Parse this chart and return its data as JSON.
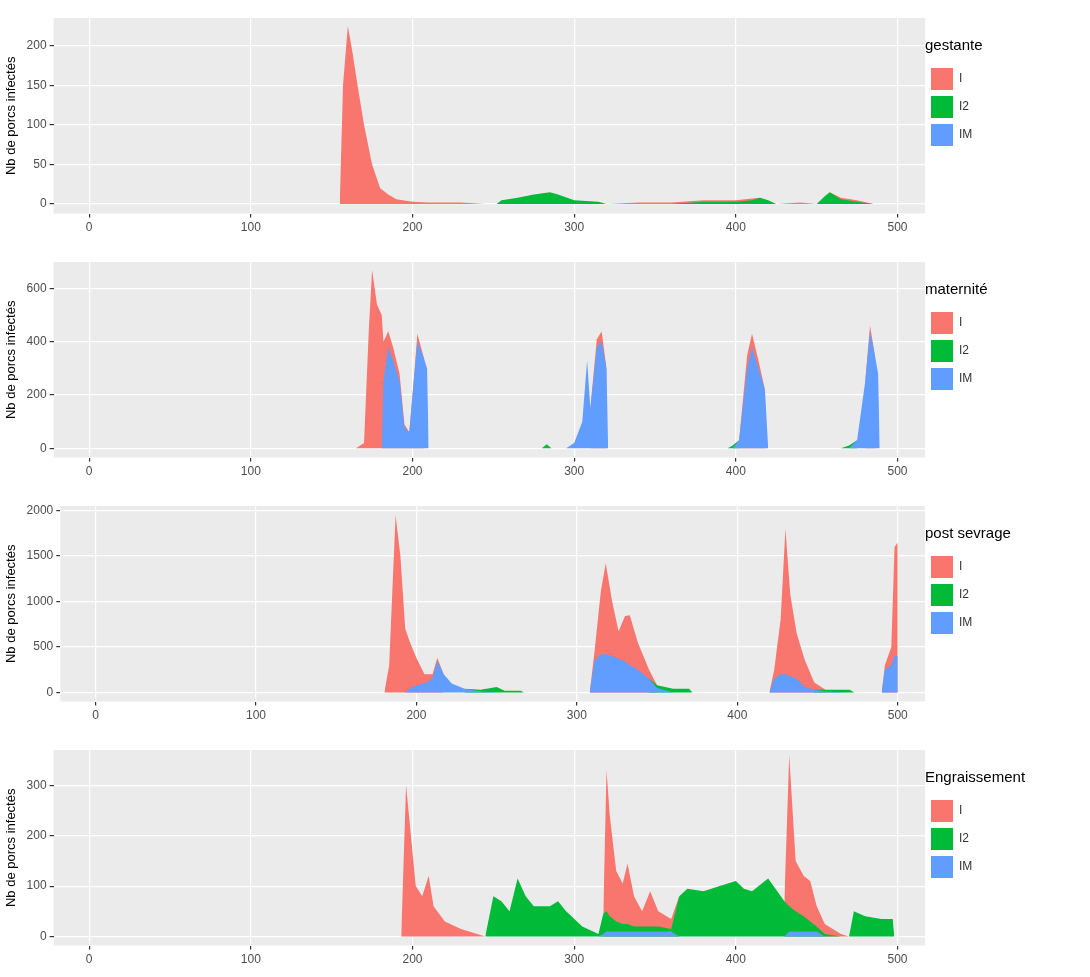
{
  "chart_data": [
    {
      "type": "area",
      "stacked": true,
      "ylabel": "Nb de porcs infectés",
      "legend_title": "gestante",
      "legend": "right",
      "grid": true,
      "x": [
        155,
        157,
        160,
        163,
        166,
        170,
        175,
        180,
        185,
        190,
        200,
        210,
        230,
        245,
        252,
        255,
        265,
        275,
        285,
        290,
        300,
        315,
        320,
        340,
        360,
        380,
        400,
        410,
        415,
        420,
        425,
        440,
        450,
        455,
        458,
        465,
        475,
        485
      ],
      "xlim": [
        -22,
        517
      ],
      "xticks": [
        0,
        100,
        200,
        300,
        400,
        500
      ],
      "ylim": [
        -12,
        235
      ],
      "yticks": [
        0,
        50,
        100,
        150,
        200
      ],
      "series": [
        {
          "name": "IM",
          "color": "#619cff",
          "values": [
            null,
            null,
            null,
            null,
            null,
            null,
            null,
            null,
            null,
            null,
            null,
            null,
            null,
            null,
            null,
            null,
            null,
            null,
            null,
            null,
            null,
            null,
            null,
            null,
            null,
            null,
            null,
            null,
            null,
            null,
            null,
            null,
            null,
            null,
            null,
            null,
            null,
            null
          ]
        },
        {
          "name": "I2",
          "color": "#00ba38",
          "values": [
            null,
            null,
            null,
            null,
            null,
            null,
            null,
            null,
            null,
            null,
            null,
            null,
            null,
            null,
            0,
            5,
            8,
            12,
            15,
            12,
            5,
            3,
            0,
            null,
            0,
            3,
            3,
            5,
            8,
            5,
            0,
            null,
            0,
            10,
            15,
            6,
            3,
            0
          ]
        },
        {
          "name": "I",
          "color": "#f8766d",
          "values": [
            0,
            150,
            225,
            190,
            150,
            100,
            50,
            20,
            12,
            6,
            3,
            2,
            2,
            0,
            null,
            null,
            null,
            null,
            null,
            null,
            null,
            null,
            0,
            2,
            2,
            2,
            2,
            2,
            0,
            null,
            0,
            2,
            0,
            null,
            0,
            2,
            2,
            0
          ]
        }
      ]
    },
    {
      "type": "area",
      "stacked": true,
      "ylabel": "Nb de porcs infectés",
      "legend_title": "maternité",
      "legend": "right",
      "grid": true,
      "x": [
        165,
        170,
        173,
        175,
        178,
        181,
        182,
        185,
        188,
        192,
        195,
        198,
        200,
        203,
        207,
        209,
        210,
        280,
        283,
        286,
        295,
        300,
        305,
        308,
        310,
        314,
        317,
        320,
        321,
        395,
        398,
        402,
        407,
        410,
        414,
        418,
        420,
        465,
        470,
        475,
        480,
        483,
        486,
        488,
        489
      ],
      "xlim": [
        -22,
        517
      ],
      "xticks": [
        0,
        100,
        200,
        300,
        400,
        500
      ],
      "ylim": [
        -35,
        700
      ],
      "yticks": [
        0,
        200,
        400,
        600
      ],
      "series": [
        {
          "name": "IM",
          "color": "#619cff",
          "values": [
            null,
            null,
            null,
            null,
            null,
            0,
            250,
            380,
            330,
            250,
            80,
            60,
            200,
            400,
            340,
            300,
            0,
            null,
            null,
            null,
            0,
            20,
            100,
            330,
            150,
            380,
            400,
            300,
            0,
            null,
            0,
            30,
            300,
            380,
            300,
            220,
            0,
            null,
            0,
            30,
            250,
            440,
            350,
            280,
            0
          ]
        },
        {
          "name": "I2",
          "color": "#00ba38",
          "values": [
            null,
            null,
            null,
            null,
            null,
            null,
            null,
            null,
            null,
            null,
            null,
            null,
            null,
            null,
            null,
            null,
            null,
            0,
            15,
            0,
            null,
            null,
            null,
            null,
            null,
            null,
            null,
            null,
            null,
            0,
            10,
            0,
            null,
            null,
            null,
            null,
            null,
            0,
            10,
            0,
            null,
            null,
            null,
            null,
            null
          ]
        },
        {
          "name": "I",
          "color": "#f8766d",
          "values": [
            0,
            20,
            450,
            670,
            540,
            500,
            150,
            60,
            50,
            30,
            10,
            0,
            0,
            30,
            0,
            null,
            null,
            null,
            null,
            null,
            null,
            null,
            null,
            null,
            0,
            30,
            40,
            0,
            null,
            null,
            null,
            0,
            50,
            50,
            30,
            0,
            null,
            null,
            null,
            null,
            0,
            20,
            0,
            null,
            null
          ]
        }
      ]
    },
    {
      "type": "area",
      "stacked": true,
      "ylabel": "Nb de porcs infectés",
      "legend_title": "post sevrage",
      "legend": "right",
      "grid": true,
      "x": [
        180,
        183,
        187,
        190,
        193,
        196,
        200,
        205,
        210,
        213,
        217,
        222,
        230,
        240,
        250,
        255,
        265,
        267,
        308,
        311,
        315,
        318,
        322,
        326,
        330,
        333,
        338,
        345,
        350,
        360,
        370,
        372,
        420,
        423,
        427,
        430,
        433,
        437,
        442,
        448,
        455,
        470,
        473,
        490,
        492,
        496,
        498,
        500
      ],
      "xlim": [
        -22,
        517
      ],
      "xticks": [
        0,
        100,
        200,
        300,
        400,
        500
      ],
      "ylim": [
        -100,
        2050
      ],
      "yticks": [
        0,
        500,
        1000,
        1500,
        2000
      ],
      "series": [
        {
          "name": "IM",
          "color": "#619cff",
          "values": [
            null,
            null,
            null,
            null,
            0,
            50,
            80,
            100,
            150,
            350,
            200,
            100,
            40,
            10,
            0,
            null,
            null,
            null,
            0,
            350,
            420,
            420,
            400,
            370,
            340,
            300,
            250,
            150,
            50,
            0,
            null,
            null,
            0,
            150,
            200,
            200,
            180,
            150,
            60,
            30,
            10,
            0,
            null,
            0,
            250,
            300,
            400,
            400
          ]
        },
        {
          "name": "I2",
          "color": "#00ba38",
          "values": [
            null,
            null,
            null,
            null,
            null,
            null,
            null,
            null,
            null,
            null,
            null,
            null,
            0,
            20,
            60,
            20,
            20,
            0,
            null,
            null,
            null,
            null,
            null,
            null,
            null,
            null,
            null,
            0,
            30,
            40,
            40,
            0,
            null,
            null,
            null,
            null,
            null,
            null,
            null,
            0,
            20,
            30,
            0,
            null,
            null,
            null,
            null,
            null
          ]
        },
        {
          "name": "I",
          "color": "#f8766d",
          "values": [
            0,
            300,
            1950,
            1500,
            700,
            500,
            300,
            100,
            50,
            30,
            0,
            null,
            null,
            null,
            null,
            null,
            null,
            null,
            0,
            100,
            700,
            1000,
            600,
            300,
            500,
            550,
            300,
            100,
            0,
            null,
            null,
            null,
            0,
            100,
            600,
            1600,
            900,
            500,
            300,
            80,
            0,
            null,
            null,
            0,
            50,
            200,
            1200,
            1250
          ]
        }
      ]
    },
    {
      "type": "area",
      "stacked": true,
      "ylabel": "Nb de porcs infectés",
      "legend_title": "Engraissement",
      "legend": "right",
      "grid": true,
      "x": [
        193,
        196,
        199,
        202,
        206,
        210,
        213,
        220,
        230,
        245,
        250,
        255,
        260,
        265,
        270,
        275,
        285,
        290,
        295,
        305,
        315,
        318,
        320,
        322,
        326,
        330,
        333,
        337,
        342,
        347,
        352,
        360,
        365,
        370,
        380,
        390,
        400,
        405,
        410,
        420,
        430,
        433,
        437,
        442,
        446,
        450,
        455,
        465,
        470,
        473,
        480,
        490,
        497,
        498
      ],
      "xlim": [
        -22,
        517
      ],
      "xticks": [
        0,
        100,
        200,
        300,
        400,
        500
      ],
      "ylim": [
        -18,
        370
      ],
      "yticks": [
        0,
        100,
        200,
        300
      ],
      "series": [
        {
          "name": "IM",
          "color": "#619cff",
          "values": [
            null,
            null,
            null,
            null,
            null,
            null,
            null,
            null,
            null,
            null,
            null,
            null,
            null,
            null,
            null,
            null,
            null,
            null,
            null,
            null,
            0,
            5,
            10,
            10,
            10,
            10,
            10,
            10,
            10,
            10,
            10,
            10,
            0,
            null,
            null,
            null,
            null,
            null,
            null,
            null,
            0,
            10,
            10,
            10,
            10,
            10,
            0,
            null,
            null,
            null,
            null,
            null,
            null,
            null
          ]
        },
        {
          "name": "I2",
          "color": "#00ba38",
          "values": [
            null,
            null,
            null,
            null,
            null,
            null,
            null,
            null,
            null,
            0,
            80,
            70,
            50,
            115,
            80,
            60,
            60,
            70,
            50,
            20,
            5,
            40,
            40,
            30,
            20,
            15,
            15,
            10,
            10,
            10,
            10,
            5,
            80,
            95,
            90,
            100,
            110,
            95,
            90,
            115,
            70,
            50,
            40,
            30,
            20,
            10,
            5,
            0,
            0,
            50,
            40,
            35,
            35,
            0
          ]
        },
        {
          "name": "I",
          "color": "#f8766d",
          "values": [
            0,
            300,
            200,
            100,
            80,
            120,
            60,
            30,
            15,
            0,
            null,
            null,
            null,
            null,
            null,
            null,
            null,
            null,
            null,
            null,
            null,
            0,
            280,
            200,
            100,
            80,
            120,
            60,
            30,
            70,
            30,
            20,
            0,
            null,
            null,
            null,
            null,
            null,
            null,
            null,
            0,
            300,
            100,
            80,
            80,
            40,
            20,
            5,
            0,
            null,
            null,
            null,
            null,
            null
          ]
        }
      ]
    }
  ]
}
